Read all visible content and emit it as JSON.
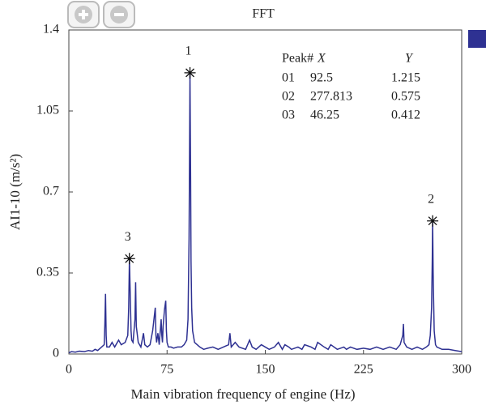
{
  "chart_data": {
    "type": "line",
    "title": "FFT",
    "xlabel": "Main vibration frequency of engine (Hz)",
    "ylabel": "AI1-10 (m/s²)",
    "x": [
      0,
      2,
      5,
      8,
      12,
      15,
      18,
      20,
      22,
      25,
      27,
      27.5,
      28,
      28.5,
      29,
      31,
      33,
      35,
      38,
      40,
      43,
      45,
      45.7,
      46.25,
      46.8,
      47.5,
      48,
      49,
      50.5,
      51,
      51.5,
      53,
      55,
      57,
      58,
      60,
      62,
      64,
      65,
      66,
      66.5,
      67,
      68,
      69,
      70.5,
      71,
      71.5,
      72,
      73,
      74,
      74.5,
      75,
      76,
      78,
      80,
      83,
      86,
      88,
      90,
      91,
      91.8,
      92.2,
      92.5,
      93,
      93.3,
      93.8,
      94.5,
      96,
      98,
      100,
      103,
      106,
      110,
      114,
      118,
      122,
      123,
      124,
      127,
      130,
      135,
      138,
      140,
      143,
      147,
      150,
      153,
      157,
      160,
      163,
      165,
      168,
      170,
      175,
      178,
      180,
      185,
      188,
      190,
      195,
      198,
      200,
      205,
      210,
      212,
      215,
      220,
      225,
      230,
      235,
      240,
      245,
      250,
      253,
      255,
      255.5,
      256,
      258,
      262,
      266,
      270,
      273,
      275,
      276,
      277,
      277.5,
      277.813,
      278.2,
      278.5,
      279,
      280,
      281,
      285,
      290,
      295,
      300
    ],
    "series": [
      {
        "color": "#2e3192",
        "values": [
          0.005,
          0.01,
          0.008,
          0.012,
          0.01,
          0.015,
          0.012,
          0.02,
          0.015,
          0.03,
          0.04,
          0.13,
          0.26,
          0.08,
          0.03,
          0.03,
          0.05,
          0.03,
          0.06,
          0.04,
          0.05,
          0.08,
          0.2,
          0.412,
          0.28,
          0.1,
          0.06,
          0.05,
          0.15,
          0.31,
          0.12,
          0.05,
          0.03,
          0.09,
          0.04,
          0.03,
          0.04,
          0.1,
          0.15,
          0.2,
          0.08,
          0.05,
          0.09,
          0.04,
          0.15,
          0.08,
          0.05,
          0.12,
          0.19,
          0.23,
          0.1,
          0.05,
          0.03,
          0.03,
          0.025,
          0.03,
          0.03,
          0.04,
          0.06,
          0.15,
          0.5,
          0.9,
          1.215,
          0.75,
          0.4,
          0.2,
          0.1,
          0.05,
          0.04,
          0.03,
          0.02,
          0.025,
          0.03,
          0.02,
          0.03,
          0.04,
          0.09,
          0.03,
          0.05,
          0.03,
          0.02,
          0.06,
          0.03,
          0.02,
          0.04,
          0.03,
          0.02,
          0.03,
          0.05,
          0.02,
          0.04,
          0.03,
          0.02,
          0.03,
          0.02,
          0.04,
          0.03,
          0.02,
          0.05,
          0.03,
          0.02,
          0.04,
          0.02,
          0.03,
          0.02,
          0.03,
          0.02,
          0.025,
          0.02,
          0.03,
          0.02,
          0.03,
          0.02,
          0.04,
          0.08,
          0.13,
          0.05,
          0.03,
          0.02,
          0.03,
          0.02,
          0.03,
          0.04,
          0.08,
          0.2,
          0.4,
          0.575,
          0.35,
          0.25,
          0.1,
          0.04,
          0.03,
          0.02,
          0.02,
          0.015,
          0.01
        ]
      }
    ],
    "xlim": [
      0,
      300
    ],
    "xticks": [
      0,
      75,
      150,
      225,
      300
    ],
    "ylim": [
      0,
      1.4
    ],
    "yticks": [
      0,
      0.35,
      0.7,
      1.05,
      1.4
    ],
    "peaks": [
      {
        "label": "1",
        "id": "01",
        "x": 92.5,
        "y": 1.215
      },
      {
        "label": "2",
        "id": "02",
        "x": 277.813,
        "y": 0.575
      },
      {
        "label": "3",
        "id": "03",
        "x": 46.25,
        "y": 0.412
      }
    ],
    "table_headers": [
      "Peak#",
      "X",
      "Y"
    ]
  }
}
